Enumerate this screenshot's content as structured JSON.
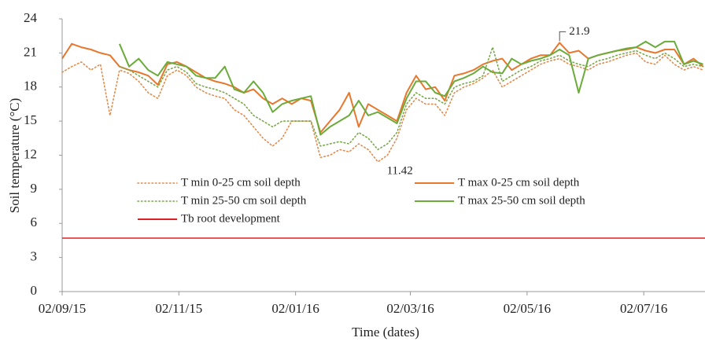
{
  "chart_data": {
    "type": "line",
    "y_label": "Soil temperature (°C)",
    "x_label": "Time (dates)",
    "x": [
      "2015-09-02",
      "2015-09-07",
      "2015-09-12",
      "2015-09-17",
      "2015-09-22",
      "2015-09-27",
      "2015-10-02",
      "2015-10-07",
      "2015-10-12",
      "2015-10-17",
      "2015-10-22",
      "2015-10-27",
      "2015-11-01",
      "2015-11-06",
      "2015-11-11",
      "2015-11-16",
      "2015-11-21",
      "2015-11-26",
      "2015-12-01",
      "2015-12-06",
      "2015-12-11",
      "2015-12-16",
      "2015-12-21",
      "2015-12-26",
      "2015-12-31",
      "2016-01-05",
      "2016-01-10",
      "2016-01-15",
      "2016-01-20",
      "2016-01-25",
      "2016-01-30",
      "2016-02-04",
      "2016-02-09",
      "2016-02-14",
      "2016-02-19",
      "2016-02-24",
      "2016-02-29",
      "2016-03-05",
      "2016-03-10",
      "2016-03-15",
      "2016-03-20",
      "2016-03-25",
      "2016-03-30",
      "2016-04-04",
      "2016-04-09",
      "2016-04-14",
      "2016-04-19",
      "2016-04-24",
      "2016-04-29",
      "2016-05-04",
      "2016-05-09",
      "2016-05-14",
      "2016-05-19",
      "2016-05-24",
      "2016-05-29",
      "2016-06-03",
      "2016-06-08",
      "2016-06-13",
      "2016-06-18",
      "2016-06-23",
      "2016-06-28",
      "2016-07-03",
      "2016-07-08",
      "2016-07-13",
      "2016-07-18",
      "2016-07-23",
      "2016-07-28",
      "2016-08-02"
    ],
    "xlim": [
      "2015-09-02",
      "2016-08-03"
    ],
    "xticks": [
      {
        "value": "2015-09-02",
        "label": "02/09/15"
      },
      {
        "value": "2015-11-02",
        "label": "02/11/15"
      },
      {
        "value": "2016-01-02",
        "label": "02/01/16"
      },
      {
        "value": "2016-03-02",
        "label": "02/03/16"
      },
      {
        "value": "2016-05-02",
        "label": "02/05/16"
      },
      {
        "value": "2016-07-02",
        "label": "02/07/16"
      }
    ],
    "ylim": [
      0,
      24
    ],
    "yticks": [
      0,
      3,
      6,
      9,
      12,
      15,
      18,
      21,
      24
    ],
    "series": [
      {
        "name": "T min 0-25 cm soil depth",
        "color": "#e28a4b",
        "dotted": true,
        "values": [
          19.3,
          19.8,
          20.2,
          19.5,
          20.0,
          15.5,
          19.5,
          19.2,
          18.5,
          17.5,
          17.0,
          19.0,
          19.5,
          19.0,
          18.0,
          17.5,
          17.2,
          17.0,
          16.0,
          15.5,
          14.5,
          13.5,
          12.8,
          13.5,
          15.0,
          15.0,
          15.0,
          11.8,
          12.0,
          12.5,
          12.3,
          13.0,
          12.5,
          11.42,
          12.0,
          13.5,
          16.0,
          17.0,
          16.5,
          16.5,
          15.5,
          17.5,
          18.0,
          18.3,
          18.8,
          19.5,
          18.0,
          18.5,
          19.0,
          19.5,
          20.0,
          20.3,
          20.5,
          20.0,
          19.8,
          19.5,
          20.0,
          20.2,
          20.5,
          20.8,
          21.0,
          20.2,
          20.0,
          20.8,
          20.0,
          19.5,
          19.8,
          19.5
        ]
      },
      {
        "name": "T max 0-25 cm soil depth",
        "color": "#e8772e",
        "dotted": false,
        "values": [
          20.5,
          21.8,
          21.5,
          21.3,
          21.0,
          20.8,
          19.8,
          19.5,
          19.3,
          19.0,
          18.2,
          20.0,
          20.2,
          19.8,
          19.3,
          18.8,
          18.5,
          18.3,
          18.0,
          17.5,
          17.8,
          17.0,
          16.5,
          17.0,
          16.5,
          17.0,
          16.8,
          14.0,
          15.0,
          16.0,
          17.5,
          14.5,
          16.5,
          16.0,
          15.5,
          15.0,
          17.5,
          19.0,
          17.8,
          18.0,
          16.8,
          19.0,
          19.2,
          19.5,
          20.0,
          20.3,
          20.5,
          19.5,
          20.0,
          20.5,
          20.8,
          20.8,
          21.9,
          21.0,
          21.2,
          20.5,
          20.8,
          21.0,
          21.2,
          21.3,
          21.5,
          21.2,
          21.0,
          21.3,
          21.3,
          20.0,
          20.5,
          19.8
        ]
      },
      {
        "name": "T min 25-50 cm soil depth",
        "color": "#79a84a",
        "dotted": true,
        "values": [
          null,
          null,
          null,
          null,
          null,
          null,
          19.8,
          19.5,
          19.0,
          18.5,
          18.0,
          19.5,
          19.8,
          19.3,
          18.3,
          18.0,
          17.8,
          17.5,
          17.0,
          16.5,
          15.5,
          15.0,
          14.5,
          15.0,
          15.0,
          15.0,
          15.0,
          12.8,
          13.0,
          13.2,
          13.0,
          14.0,
          13.5,
          12.5,
          13.0,
          14.0,
          16.5,
          17.5,
          17.0,
          17.0,
          16.5,
          18.0,
          18.3,
          18.5,
          19.0,
          21.5,
          18.5,
          19.0,
          19.5,
          19.8,
          20.3,
          20.5,
          20.8,
          20.3,
          20.0,
          19.8,
          20.3,
          20.5,
          20.8,
          21.0,
          21.2,
          20.8,
          20.5,
          21.0,
          20.5,
          19.8,
          20.0,
          19.8
        ]
      },
      {
        "name": "T max 25-50 cm soil depth",
        "color": "#6aab3a",
        "dotted": false,
        "values": [
          null,
          null,
          null,
          null,
          null,
          null,
          21.8,
          19.8,
          20.5,
          19.5,
          19.0,
          20.2,
          20.0,
          19.8,
          19.0,
          18.8,
          18.8,
          19.8,
          17.8,
          17.5,
          18.5,
          17.5,
          15.8,
          16.5,
          16.8,
          17.0,
          17.2,
          13.8,
          14.5,
          15.0,
          15.5,
          16.8,
          15.5,
          15.8,
          15.3,
          14.8,
          17.0,
          18.5,
          18.5,
          17.5,
          17.2,
          18.5,
          18.8,
          19.2,
          19.8,
          19.3,
          19.2,
          20.5,
          20.0,
          20.3,
          20.5,
          20.8,
          21.3,
          20.8,
          17.5,
          20.5,
          20.8,
          21.0,
          21.2,
          21.4,
          21.5,
          22.0,
          21.5,
          22.0,
          22.0,
          20.0,
          20.3,
          20.0
        ]
      }
    ],
    "reference_lines": [
      {
        "name": "Tb root development",
        "color": "#e02020",
        "value": 4.7
      }
    ],
    "annotations": [
      {
        "text": "21.9",
        "x": "2016-05-19",
        "value": 21.9
      },
      {
        "text": "11.42",
        "x": "2016-02-14",
        "value": 11.42
      }
    ]
  }
}
